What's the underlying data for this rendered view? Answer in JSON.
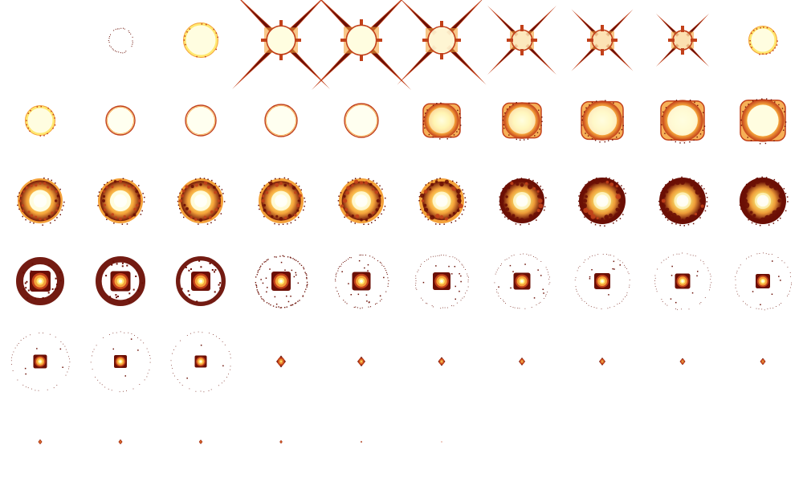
{
  "sprite_sheet": {
    "columns": 10,
    "rows": 6,
    "frame_count": 56,
    "palette": {
      "background": "#ffffff",
      "core": "#fffde0",
      "yellow": "#ffe870",
      "orange": "#f4a23a",
      "red": "#c2401a",
      "dark": "#6b0f05"
    },
    "frames": [
      {
        "kind": "blank"
      },
      {
        "kind": "dotted-ring",
        "size": 0.3,
        "intensity": 0.2
      },
      {
        "kind": "ring-glow",
        "size": 0.4,
        "intensity": 0.9
      },
      {
        "kind": "flare",
        "size": 0.42,
        "intensity": 1.0,
        "spike": 1.0
      },
      {
        "kind": "flare",
        "size": 0.44,
        "intensity": 1.0,
        "spike": 1.0
      },
      {
        "kind": "flare",
        "size": 0.4,
        "intensity": 0.85,
        "spike": 0.85
      },
      {
        "kind": "flare",
        "size": 0.3,
        "intensity": 0.6,
        "spike": 0.6
      },
      {
        "kind": "flare",
        "size": 0.3,
        "intensity": 0.5,
        "spike": 0.45
      },
      {
        "kind": "flare",
        "size": 0.28,
        "intensity": 0.45,
        "spike": 0.3
      },
      {
        "kind": "ring-glow",
        "size": 0.32,
        "intensity": 0.8
      },
      {
        "kind": "ring-glow",
        "size": 0.34,
        "intensity": 0.9
      },
      {
        "kind": "ring-thin",
        "size": 0.36,
        "intensity": 0.5
      },
      {
        "kind": "ring-thin",
        "size": 0.38,
        "intensity": 0.4
      },
      {
        "kind": "ring-thin",
        "size": 0.4,
        "intensity": 0.4
      },
      {
        "kind": "ring-thin",
        "size": 0.42,
        "intensity": 0.5
      },
      {
        "kind": "ring-fill",
        "size": 0.46,
        "intensity": 0.6
      },
      {
        "kind": "ring-fill",
        "size": 0.48,
        "intensity": 0.7
      },
      {
        "kind": "ring-fill",
        "size": 0.52,
        "intensity": 0.8
      },
      {
        "kind": "ring-fill",
        "size": 0.54,
        "intensity": 0.9
      },
      {
        "kind": "ring-fill",
        "size": 0.56,
        "intensity": 1.0
      },
      {
        "kind": "burst",
        "size": 0.56,
        "intensity": 1.0,
        "darkness": 0.1
      },
      {
        "kind": "burst",
        "size": 0.56,
        "intensity": 1.0,
        "darkness": 0.2
      },
      {
        "kind": "burst",
        "size": 0.56,
        "intensity": 0.95,
        "darkness": 0.3
      },
      {
        "kind": "burst",
        "size": 0.56,
        "intensity": 0.9,
        "darkness": 0.4
      },
      {
        "kind": "burst",
        "size": 0.56,
        "intensity": 0.85,
        "darkness": 0.5
      },
      {
        "kind": "burst",
        "size": 0.56,
        "intensity": 0.8,
        "darkness": 0.6
      },
      {
        "kind": "burst",
        "size": 0.56,
        "intensity": 0.75,
        "darkness": 0.7
      },
      {
        "kind": "burst",
        "size": 0.58,
        "intensity": 0.7,
        "darkness": 0.8
      },
      {
        "kind": "burst",
        "size": 0.58,
        "intensity": 0.65,
        "darkness": 0.9
      },
      {
        "kind": "burst",
        "size": 0.58,
        "intensity": 0.6,
        "darkness": 1.0
      },
      {
        "kind": "shockwave",
        "size": 0.6,
        "core": 0.26,
        "ring": 1.0
      },
      {
        "kind": "shockwave",
        "size": 0.62,
        "core": 0.25,
        "ring": 0.85
      },
      {
        "kind": "shockwave",
        "size": 0.62,
        "core": 0.24,
        "ring": 0.6
      },
      {
        "kind": "shockwave",
        "size": 0.64,
        "core": 0.24,
        "ring": 0.45
      },
      {
        "kind": "shockwave",
        "size": 0.66,
        "core": 0.23,
        "ring": 0.35
      },
      {
        "kind": "shockwave",
        "size": 0.66,
        "core": 0.22,
        "ring": 0.28
      },
      {
        "kind": "shockwave",
        "size": 0.68,
        "core": 0.21,
        "ring": 0.24
      },
      {
        "kind": "shockwave",
        "size": 0.68,
        "core": 0.2,
        "ring": 0.2
      },
      {
        "kind": "shockwave",
        "size": 0.7,
        "core": 0.19,
        "ring": 0.18
      },
      {
        "kind": "shockwave",
        "size": 0.7,
        "core": 0.18,
        "ring": 0.16
      },
      {
        "kind": "shockwave",
        "size": 0.72,
        "core": 0.17,
        "ring": 0.12
      },
      {
        "kind": "shockwave",
        "size": 0.74,
        "core": 0.16,
        "ring": 0.09
      },
      {
        "kind": "shockwave",
        "size": 0.74,
        "core": 0.15,
        "ring": 0.07
      },
      {
        "kind": "ember",
        "size": 0.12,
        "intensity": 0.8
      },
      {
        "kind": "ember",
        "size": 0.1,
        "intensity": 0.75
      },
      {
        "kind": "ember",
        "size": 0.09,
        "intensity": 0.7
      },
      {
        "kind": "ember",
        "size": 0.08,
        "intensity": 0.65
      },
      {
        "kind": "ember",
        "size": 0.08,
        "intensity": 0.6
      },
      {
        "kind": "ember",
        "size": 0.07,
        "intensity": 0.55
      },
      {
        "kind": "ember",
        "size": 0.07,
        "intensity": 0.5
      },
      {
        "kind": "ember",
        "size": 0.05,
        "intensity": 0.4
      },
      {
        "kind": "ember",
        "size": 0.05,
        "intensity": 0.35
      },
      {
        "kind": "ember",
        "size": 0.045,
        "intensity": 0.3
      },
      {
        "kind": "ember",
        "size": 0.035,
        "intensity": 0.25
      },
      {
        "kind": "ember",
        "size": 0.02,
        "intensity": 0.2
      },
      {
        "kind": "ember",
        "size": 0.01,
        "intensity": 0.15
      }
    ]
  }
}
